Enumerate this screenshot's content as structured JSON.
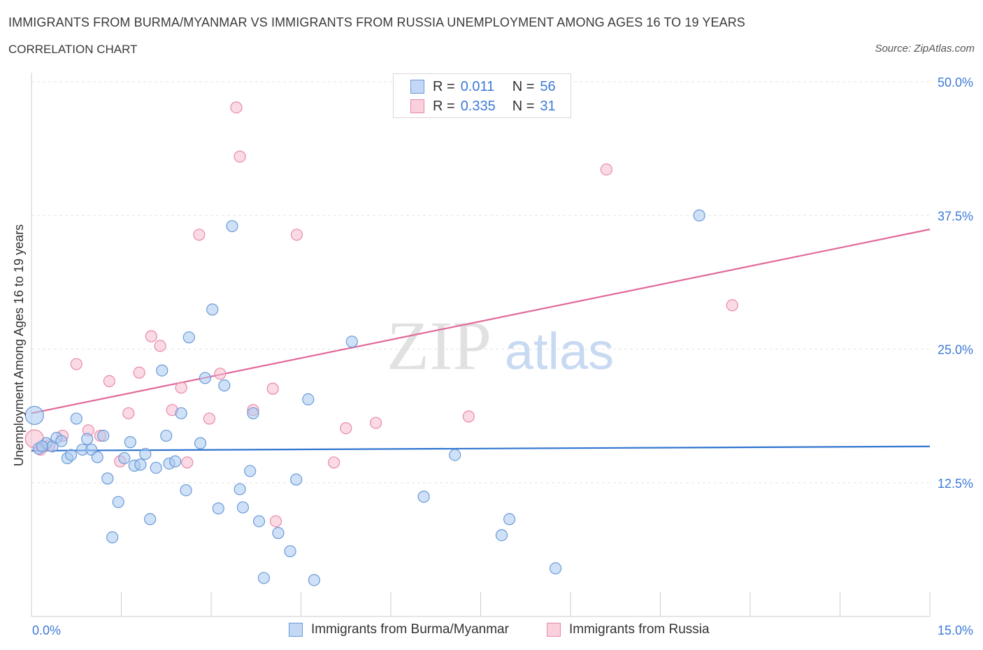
{
  "header": {
    "title": "IMMIGRANTS FROM BURMA/MYANMAR VS IMMIGRANTS FROM RUSSIA UNEMPLOYMENT AMONG AGES 16 TO 19 YEARS",
    "subtitle": "CORRELATION CHART",
    "source": "Source: ZipAtlas.com"
  },
  "watermark": {
    "zip": "ZIP",
    "atlas": "atlas"
  },
  "legend": {
    "r_label": "R =",
    "n_label": "N =",
    "burma": {
      "r": "0.011",
      "n": "56"
    },
    "russia": {
      "r": "0.335",
      "n": "31"
    }
  },
  "colors": {
    "burma_fill": "#a8c8f0",
    "burma_stroke": "#6a9ad8",
    "burma_line": "#2f74d0",
    "russia_fill": "#f6bccd",
    "russia_stroke": "#e88aa7",
    "russia_line": "#e0699a",
    "tick_label": "#3d7ad6"
  },
  "chart_data": {
    "type": "scatter",
    "title": "IMMIGRANTS FROM BURMA/MYANMAR VS IMMIGRANTS FROM RUSSIA UNEMPLOYMENT AMONG AGES 16 TO 19 YEARS",
    "subtitle": "CORRELATION CHART",
    "xlabel": "",
    "ylabel": "Unemployment Among Ages 16 to 19 years",
    "xlim": [
      0,
      15
    ],
    "ylim": [
      0,
      50
    ],
    "x_tick_labels": [
      "0.0%",
      "15.0%"
    ],
    "y_ticks": [
      12.5,
      25.0,
      37.5,
      50.0
    ],
    "y_tick_labels": [
      "12.5%",
      "25.0%",
      "37.5%",
      "50.0%"
    ],
    "grid": true,
    "legend_position": "bottom",
    "series": [
      {
        "name": "Immigrants from Burma/Myanmar",
        "r": 0.011,
        "n": 56,
        "trend": [
          [
            0,
            15.5
          ],
          [
            15,
            15.9
          ]
        ],
        "points": [
          [
            0.05,
            18.8
          ],
          [
            0.12,
            15.7
          ],
          [
            0.25,
            16.2
          ],
          [
            0.35,
            15.9
          ],
          [
            0.42,
            16.7
          ],
          [
            0.5,
            16.4
          ],
          [
            0.6,
            14.8
          ],
          [
            0.66,
            15.1
          ],
          [
            0.75,
            18.5
          ],
          [
            0.85,
            15.6
          ],
          [
            0.93,
            16.6
          ],
          [
            1.0,
            15.6
          ],
          [
            1.1,
            14.9
          ],
          [
            1.2,
            16.9
          ],
          [
            1.27,
            12.9
          ],
          [
            1.35,
            7.4
          ],
          [
            1.45,
            10.7
          ],
          [
            1.55,
            14.8
          ],
          [
            1.65,
            16.3
          ],
          [
            1.72,
            14.1
          ],
          [
            1.82,
            14.2
          ],
          [
            1.9,
            15.2
          ],
          [
            1.98,
            9.1
          ],
          [
            2.08,
            13.9
          ],
          [
            2.18,
            23.0
          ],
          [
            2.25,
            16.9
          ],
          [
            2.3,
            14.3
          ],
          [
            2.4,
            14.5
          ],
          [
            2.5,
            19.0
          ],
          [
            2.58,
            11.8
          ],
          [
            2.63,
            26.1
          ],
          [
            2.82,
            16.2
          ],
          [
            2.9,
            22.3
          ],
          [
            3.02,
            28.7
          ],
          [
            3.12,
            10.1
          ],
          [
            3.22,
            21.6
          ],
          [
            3.35,
            36.5
          ],
          [
            3.48,
            11.9
          ],
          [
            3.53,
            10.2
          ],
          [
            3.65,
            13.6
          ],
          [
            3.7,
            19.0
          ],
          [
            3.8,
            8.9
          ],
          [
            3.88,
            3.6
          ],
          [
            4.12,
            7.8
          ],
          [
            4.32,
            6.1
          ],
          [
            4.42,
            12.8
          ],
          [
            4.62,
            20.3
          ],
          [
            4.72,
            3.4
          ],
          [
            5.35,
            25.7
          ],
          [
            6.55,
            11.2
          ],
          [
            7.07,
            15.1
          ],
          [
            7.85,
            7.6
          ],
          [
            7.98,
            9.1
          ],
          [
            8.75,
            4.5
          ],
          [
            11.15,
            37.5
          ],
          [
            0.18,
            15.9
          ]
        ]
      },
      {
        "name": "Immigrants from Russia",
        "r": 0.335,
        "n": 31,
        "trend": [
          [
            0,
            19.0
          ],
          [
            15,
            36.2
          ]
        ],
        "points": [
          [
            0.05,
            16.6
          ],
          [
            0.3,
            16.0
          ],
          [
            0.52,
            16.9
          ],
          [
            0.75,
            23.6
          ],
          [
            0.95,
            17.4
          ],
          [
            1.15,
            16.9
          ],
          [
            1.3,
            22.0
          ],
          [
            1.48,
            14.5
          ],
          [
            1.62,
            19.0
          ],
          [
            1.8,
            22.8
          ],
          [
            2.0,
            26.2
          ],
          [
            2.15,
            25.3
          ],
          [
            2.35,
            19.3
          ],
          [
            2.5,
            21.4
          ],
          [
            2.8,
            35.7
          ],
          [
            2.97,
            18.5
          ],
          [
            3.15,
            22.7
          ],
          [
            3.42,
            47.6
          ],
          [
            3.48,
            43.0
          ],
          [
            3.7,
            19.3
          ],
          [
            4.03,
            21.3
          ],
          [
            4.08,
            8.9
          ],
          [
            4.43,
            35.7
          ],
          [
            5.05,
            14.4
          ],
          [
            5.25,
            17.6
          ],
          [
            5.75,
            18.1
          ],
          [
            7.3,
            18.7
          ],
          [
            9.6,
            41.8
          ],
          [
            11.7,
            29.1
          ],
          [
            0.15,
            15.6
          ],
          [
            2.6,
            14.4
          ]
        ]
      }
    ]
  },
  "bottom_legend": {
    "burma_label": "Immigrants from Burma/Myanmar",
    "russia_label": "Immigrants from Russia"
  }
}
